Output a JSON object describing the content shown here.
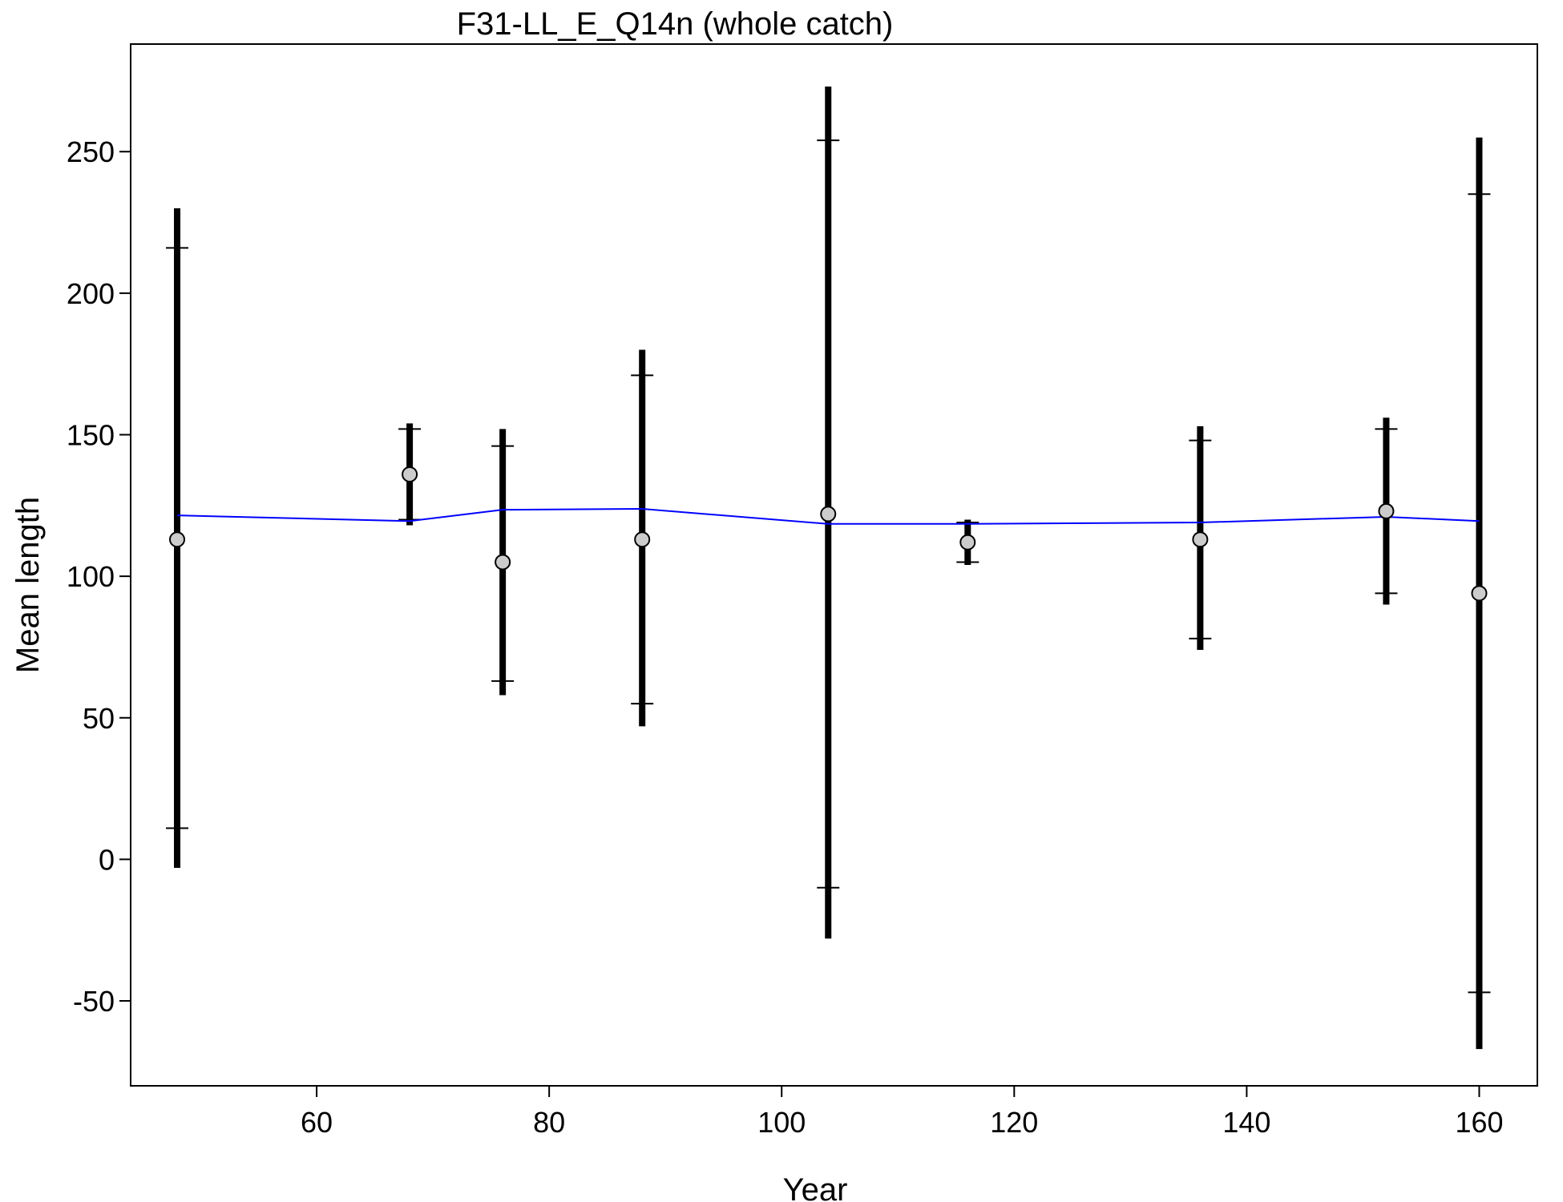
{
  "chart_data": {
    "type": "scatter",
    "title": "F31-LL_E_Q14n (whole catch)",
    "xlabel": "Year",
    "ylabel": "Mean length",
    "xlim": [
      44,
      165
    ],
    "ylim": [
      -80,
      288
    ],
    "x_ticks": [
      60,
      80,
      100,
      120,
      140,
      160
    ],
    "y_ticks": [
      -50,
      0,
      50,
      100,
      150,
      200,
      250
    ],
    "grid": false,
    "colors": {
      "observed_fill": "#cccccc",
      "expected_line": "#0000ff",
      "interval": "#000000"
    },
    "observed": [
      {
        "x": 48,
        "y": 113,
        "inner": [
          11,
          216
        ],
        "outer": [
          -3,
          230
        ]
      },
      {
        "x": 68,
        "y": 136,
        "inner": [
          120,
          152
        ],
        "outer": [
          118,
          154
        ]
      },
      {
        "x": 76,
        "y": 105,
        "inner": [
          63,
          146
        ],
        "outer": [
          58,
          152
        ]
      },
      {
        "x": 88,
        "y": 113,
        "inner": [
          55,
          171
        ],
        "outer": [
          47,
          180
        ]
      },
      {
        "x": 104,
        "y": 122,
        "inner": [
          -10,
          254
        ],
        "outer": [
          -28,
          273
        ]
      },
      {
        "x": 116,
        "y": 112,
        "inner": [
          105,
          119
        ],
        "outer": [
          104,
          120
        ]
      },
      {
        "x": 136,
        "y": 113,
        "inner": [
          78,
          148
        ],
        "outer": [
          74,
          153
        ]
      },
      {
        "x": 152,
        "y": 123,
        "inner": [
          94,
          152
        ],
        "outer": [
          90,
          156
        ]
      },
      {
        "x": 160,
        "y": 94,
        "inner": [
          -47,
          235
        ],
        "outer": [
          -67,
          255
        ]
      }
    ],
    "expected": {
      "x": [
        48,
        68,
        76,
        88,
        104,
        116,
        136,
        152,
        160
      ],
      "y": [
        121.5,
        119.5,
        123.5,
        123.8,
        118.5,
        118.5,
        119,
        121,
        119.5
      ]
    }
  }
}
